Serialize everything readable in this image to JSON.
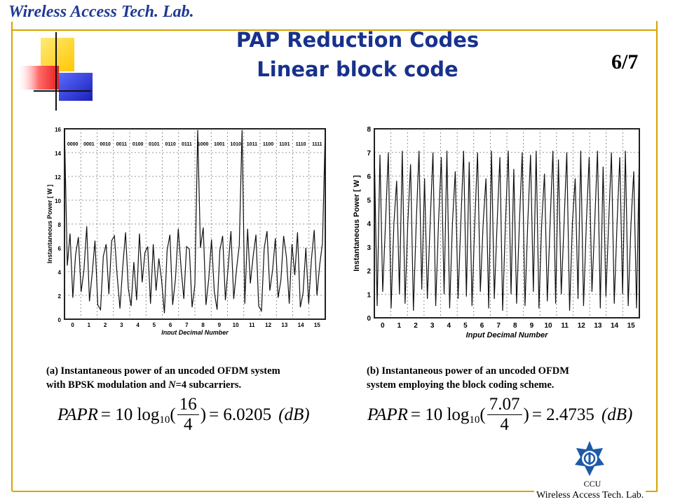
{
  "header": {
    "lab_name": "Wireless Access Tech. Lab.",
    "title_line1": "PAP Reduction Codes",
    "title_line2": "Linear block code",
    "page": "6/7"
  },
  "colors": {
    "frame": "#d9a300",
    "title": "#17318c",
    "deco_yellow": "#ffd200",
    "deco_red": "#ff3b3b",
    "deco_blue": "#2a3bd6"
  },
  "chart_data": [
    {
      "type": "line",
      "title": "",
      "xlabel": "Input Decimal Number",
      "ylabel": "Instantaneous Power [ W ]",
      "ylim": [
        0,
        16
      ],
      "xlim": [
        0,
        16
      ],
      "yticks": [
        "0",
        "2",
        "4",
        "6",
        "8",
        "10",
        "12",
        "14",
        "16"
      ],
      "xticks": [
        "0",
        "1",
        "2",
        "3",
        "4",
        "5",
        "6",
        "7",
        "8",
        "9",
        "10",
        "11",
        "12",
        "13",
        "14",
        "15"
      ],
      "codewords": [
        "0000",
        "0001",
        "0010",
        "0011",
        "0100",
        "0101",
        "0110",
        "0111",
        "1000",
        "1001",
        "1010",
        "1011",
        "1100",
        "1101",
        "1110",
        "1111"
      ],
      "grid": true,
      "series": [
        {
          "values": [
            16,
            4.5,
            7.2,
            1.8,
            5.4,
            6.9,
            2.3,
            4.1,
            7.8,
            1.5,
            3.9,
            6.6,
            1.2,
            0.8,
            5.3,
            6.3,
            2.1,
            6.6,
            7.0,
            3.6,
            0.9,
            4.4,
            7.3,
            2.6,
            1.1,
            4.8,
            1.6,
            7.2,
            3.1,
            5.6,
            6.1,
            1.3,
            6.3,
            2.4,
            5.1,
            3.3,
            0.5,
            5.8,
            7.1,
            1.2,
            3.4,
            7.6,
            4.4,
            1.7,
            6.1,
            5.9,
            1.0,
            2.9,
            15.9,
            6.0,
            7.7,
            1.2,
            3.4,
            6.7,
            2.3,
            0.8,
            5.8,
            7.0,
            1.6,
            4.4,
            7.4,
            1.7,
            4.2,
            6.2,
            15.9,
            1.3,
            7.6,
            3.0,
            5.3,
            7.1,
            1.1,
            0.7,
            6.0,
            7.4,
            2.4,
            4.1,
            6.8,
            1.8,
            3.3,
            7.0,
            5.2,
            1.3,
            6.3,
            3.7,
            7.3,
            1.0,
            2.2,
            6.0,
            1.3,
            5.0,
            7.5,
            2.0,
            4.6,
            6.4,
            16
          ]
        }
      ]
    },
    {
      "type": "line",
      "title": "",
      "xlabel": "Input Decimal Number",
      "ylabel": "Instantaneous Power [ W ]",
      "ylim": [
        0,
        8
      ],
      "xlim": [
        0,
        16
      ],
      "yticks": [
        "0",
        "1",
        "2",
        "3",
        "4",
        "5",
        "6",
        "7",
        "8"
      ],
      "xticks": [
        "0",
        "1",
        "2",
        "3",
        "4",
        "5",
        "6",
        "7",
        "8",
        "9",
        "10",
        "11",
        "12",
        "13",
        "14",
        "15"
      ],
      "grid": true,
      "series": [
        {
          "values": [
            7.07,
            0.5,
            6.9,
            1.1,
            4.0,
            7.0,
            0.4,
            4.0,
            5.8,
            1.0,
            7.07,
            0.6,
            4.0,
            6.5,
            0.3,
            4.0,
            7.07,
            1.2,
            5.9,
            0.8,
            4.0,
            7.0,
            0.5,
            4.0,
            6.8,
            1.0,
            7.07,
            0.4,
            4.0,
            6.2,
            0.8,
            4.0,
            7.07,
            0.9,
            6.6,
            0.5,
            4.0,
            7.0,
            1.1,
            4.0,
            5.9,
            0.4,
            7.07,
            0.8,
            4.0,
            6.8,
            0.3,
            4.0,
            7.07,
            1.0,
            6.3,
            0.6,
            4.0,
            7.0,
            0.5,
            4.0,
            6.9,
            1.1,
            7.07,
            0.4,
            4.0,
            6.1,
            0.7,
            4.0,
            7.07,
            0.6,
            6.7,
            1.0,
            4.0,
            7.0,
            0.3,
            4.0,
            5.9,
            0.8,
            7.07,
            0.5,
            4.0,
            6.8,
            1.1,
            4.0,
            7.07,
            0.4,
            6.4,
            0.9,
            4.0,
            7.0,
            0.6,
            4.0,
            6.8,
            1.0,
            7.07,
            0.5,
            4.0,
            6.2,
            0.4,
            7.07
          ]
        }
      ]
    }
  ],
  "captions": {
    "a_line1": "(a) Instantaneous power of an uncoded OFDM system",
    "a_line2_pre": "with BPSK modulation and ",
    "a_line2_var": "N",
    "a_line2_post": "=4 subcarriers.",
    "b_line1": "(b) Instantaneous power of an uncoded OFDM",
    "b_line2": "system employing the block coding scheme."
  },
  "formulas": {
    "a": {
      "lhs": "PAPR",
      "eq": "= 10 log",
      "sub": "10",
      "num": "16",
      "den": "4",
      "result": "= 6.0205",
      "unit": "(dB)"
    },
    "b": {
      "lhs": "PAPR",
      "eq": "= 10 log",
      "sub": "10",
      "num": "7.07",
      "den": "4",
      "result": "= 2.4735",
      "unit": "(dB)"
    }
  },
  "footer": {
    "logo_text": "CCU",
    "lab_name": "Wireless Access Tech. Lab."
  }
}
